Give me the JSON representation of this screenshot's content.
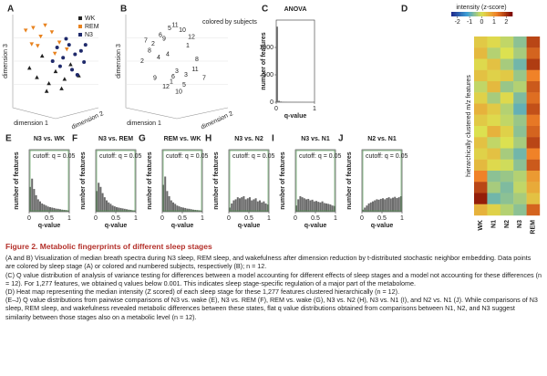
{
  "chart_data": [
    {
      "type": "scatter",
      "panel": "A",
      "xlabel": "dimension 1",
      "ylabel": "dimension 3",
      "zlabel": "dimension 2",
      "legend": "top-right",
      "xlim": [
        0,
        10
      ],
      "ylim": [
        0,
        10
      ],
      "series": [
        {
          "name": "WK",
          "color": "#222222",
          "marker": "triangle",
          "x": [
            1.5,
            2.5,
            3.2,
            4.1,
            5.0,
            6.2,
            7.0,
            3.8,
            5.8,
            8.1
          ],
          "y": [
            4.2,
            3.1,
            5.6,
            2.4,
            3.8,
            2.9,
            4.6,
            1.5,
            1.8,
            3.3
          ]
        },
        {
          "name": "REM",
          "color": "#e8821e",
          "marker": "triangle-down",
          "x": [
            1.0,
            2.0,
            3.0,
            4.5,
            5.5,
            2.6,
            3.6,
            6.5,
            1.8,
            4.9
          ],
          "y": [
            8.6,
            8.9,
            7.9,
            8.4,
            7.2,
            6.8,
            9.2,
            6.4,
            7.0,
            5.9
          ]
        },
        {
          "name": "N3",
          "color": "#1f2a6b",
          "marker": "circle",
          "x": [
            5.2,
            6.0,
            6.8,
            7.6,
            8.4,
            5.6,
            7.2,
            8.8,
            6.4,
            4.6,
            7.9,
            9.0
          ],
          "y": [
            6.6,
            5.4,
            6.9,
            5.8,
            6.2,
            4.4,
            4.0,
            4.9,
            7.6,
            5.0,
            3.4,
            6.9
          ]
        }
      ]
    },
    {
      "type": "scatter-labels",
      "panel": "B",
      "xlabel": "dimension 1",
      "ylabel": "dimension 3",
      "zlabel": "dimension 2",
      "annotation": "colored by subjects",
      "xlim": [
        0,
        10
      ],
      "ylim": [
        0,
        10
      ],
      "subject_colors": [
        "#1f2a6b",
        "#4e7fc0",
        "#e8821e",
        "#3aa6b9",
        "#222222",
        "#555555",
        "#e8a33e",
        "#c95f1a",
        "#333333",
        "#444444",
        "#d98a2b",
        "#777777"
      ],
      "x": [
        4.8,
        1.6,
        2.4,
        3.2,
        3.6,
        4.2,
        2.0,
        5.6,
        6.2,
        4.0,
        6.6,
        5.0,
        3.0,
        1.2,
        7.0,
        4.6,
        5.8,
        2.6,
        3.8,
        6.0,
        7.2,
        5.2,
        4.4,
        8.0
      ],
      "y": [
        9.2,
        7.4,
        7.0,
        8.0,
        7.6,
        8.8,
        6.2,
        8.6,
        6.8,
        5.8,
        7.8,
        3.8,
        5.4,
        5.0,
        4.0,
        3.2,
        2.2,
        3.0,
        2.0,
        3.4,
        5.2,
        1.4,
        2.6,
        3.0
      ],
      "subjects": [
        11,
        7,
        2,
        6,
        9,
        5,
        8,
        10,
        1,
        4,
        12,
        3,
        4,
        2,
        11,
        6,
        5,
        9,
        12,
        3,
        8,
        10,
        1,
        7
      ]
    },
    {
      "type": "histogram",
      "panel": "C",
      "title": "ANOVA",
      "xlabel": "q-value",
      "ylabel": "number of features",
      "xlim": [
        0,
        1
      ],
      "ylim": [
        0,
        1500
      ],
      "xticks": [
        0,
        1
      ],
      "yticks": [
        0,
        500,
        1000
      ],
      "bins": [
        0,
        0.05,
        0.1,
        0.15,
        0.2,
        0.25,
        0.3,
        0.35,
        0.4,
        0.45,
        0.5,
        0.55,
        0.6,
        0.65,
        0.7,
        0.75,
        0.8,
        0.85,
        0.9,
        0.95,
        1
      ],
      "values": [
        1380,
        25,
        12,
        8,
        6,
        5,
        4,
        4,
        3,
        3,
        3,
        2,
        2,
        2,
        2,
        1,
        1,
        1,
        1,
        1
      ]
    },
    {
      "type": "heatmap",
      "panel": "D",
      "colorbar_label": "intensity (z-score)",
      "ylabel": "hierarchically clustered m/z features",
      "clim": [
        -2.5,
        2.5
      ],
      "cticks": [
        -2,
        -1,
        0,
        1,
        2
      ],
      "categories": [
        "WK",
        "N1",
        "N2",
        "N3",
        "REM"
      ],
      "columns": [
        [
          0.3,
          0.5,
          0.1,
          0.4,
          -0.2,
          0.2,
          0.6,
          0.3,
          0.0,
          0.4,
          0.2,
          0.5,
          1.2,
          1.8,
          2.2,
          0.6
        ],
        [
          0.1,
          -0.3,
          0.4,
          0.2,
          0.5,
          -0.4,
          0.3,
          0.1,
          0.6,
          -0.2,
          0.4,
          0.1,
          -0.6,
          -0.4,
          -0.8,
          0.2
        ],
        [
          -0.2,
          0.0,
          -0.4,
          0.3,
          -0.5,
          0.1,
          -0.3,
          -0.2,
          0.2,
          0.0,
          -0.4,
          -0.1,
          -0.5,
          -0.7,
          -0.6,
          -0.3
        ],
        [
          -0.6,
          -0.4,
          -0.8,
          -0.5,
          -0.3,
          -0.7,
          -0.9,
          -0.5,
          -0.6,
          -0.4,
          -0.8,
          -0.6,
          -0.3,
          -0.2,
          -0.4,
          -0.6
        ],
        [
          1.8,
          1.5,
          1.9,
          1.2,
          1.6,
          1.4,
          1.7,
          1.3,
          1.5,
          1.8,
          1.2,
          1.6,
          0.9,
          0.7,
          0.4,
          1.5
        ]
      ]
    },
    {
      "type": "histogram",
      "panel": "E",
      "title": "N3 vs. WK",
      "annotation": "cutoff: q = 0.05",
      "xlabel": "q-value",
      "ylabel": "number of features",
      "xlim": [
        0,
        1
      ],
      "ylim": [
        0,
        300
      ],
      "xticks": [
        0,
        0.5,
        1
      ],
      "bins": [
        0,
        0.05,
        0.1,
        0.15,
        0.2,
        0.25,
        0.3,
        0.35,
        0.4,
        0.45,
        0.5,
        0.55,
        0.6,
        0.65,
        0.7,
        0.75,
        0.8,
        0.85,
        0.9,
        0.95,
        1
      ],
      "values": [
        120,
        160,
        110,
        80,
        60,
        50,
        40,
        35,
        30,
        25,
        22,
        20,
        18,
        15,
        14,
        12,
        10,
        9,
        8,
        6
      ]
    },
    {
      "type": "histogram",
      "panel": "F",
      "title": "N3 vs. REM",
      "annotation": "cutoff: q = 0.05",
      "xlabel": "q-value",
      "ylabel": "number of features",
      "xlim": [
        0,
        1
      ],
      "ylim": [
        0,
        300
      ],
      "xticks": [
        0,
        0.5,
        1
      ],
      "bins": [
        0,
        0.05,
        0.1,
        0.15,
        0.2,
        0.25,
        0.3,
        0.35,
        0.4,
        0.45,
        0.5,
        0.55,
        0.6,
        0.65,
        0.7,
        0.75,
        0.8,
        0.85,
        0.9,
        0.95,
        1
      ],
      "values": [
        100,
        140,
        120,
        90,
        70,
        55,
        45,
        38,
        30,
        26,
        22,
        20,
        18,
        16,
        14,
        12,
        10,
        9,
        7,
        6
      ]
    },
    {
      "type": "histogram",
      "panel": "G",
      "title": "REM vs. WK",
      "annotation": "cutoff: q = 0.05",
      "xlabel": "q-value",
      "ylabel": "number of features",
      "xlim": [
        0,
        1
      ],
      "ylim": [
        0,
        300
      ],
      "xticks": [
        0,
        0.5,
        1
      ],
      "bins": [
        0,
        0.05,
        0.1,
        0.15,
        0.2,
        0.25,
        0.3,
        0.35,
        0.4,
        0.45,
        0.5,
        0.55,
        0.6,
        0.65,
        0.7,
        0.75,
        0.8,
        0.85,
        0.9,
        0.95,
        1
      ],
      "values": [
        130,
        170,
        100,
        75,
        55,
        45,
        38,
        30,
        26,
        22,
        20,
        18,
        15,
        14,
        12,
        10,
        9,
        8,
        7,
        5
      ]
    },
    {
      "type": "histogram",
      "panel": "H",
      "title": "N3 vs. N2",
      "annotation": "cutoff: q = 0.05",
      "xlabel": "q-value",
      "ylabel": "number of features",
      "xlim": [
        0,
        1
      ],
      "ylim": [
        0,
        300
      ],
      "xticks": [
        0,
        0.5,
        1
      ],
      "bins": [
        0,
        0.05,
        0.1,
        0.15,
        0.2,
        0.25,
        0.3,
        0.35,
        0.4,
        0.45,
        0.5,
        0.55,
        0.6,
        0.65,
        0.7,
        0.75,
        0.8,
        0.85,
        0.9,
        0.95,
        1
      ],
      "values": [
        20,
        40,
        55,
        60,
        70,
        65,
        70,
        75,
        60,
        65,
        70,
        55,
        60,
        65,
        50,
        55,
        45,
        50,
        40,
        35
      ]
    },
    {
      "type": "histogram",
      "panel": "I",
      "title": "N3 vs. N1",
      "annotation": "cutoff: q = 0.05",
      "xlabel": "q-value",
      "ylabel": "number of features",
      "xlim": [
        0,
        1
      ],
      "ylim": [
        0,
        300
      ],
      "xticks": [
        0,
        0.5,
        1
      ],
      "bins": [
        0,
        0.05,
        0.1,
        0.15,
        0.2,
        0.25,
        0.3,
        0.35,
        0.4,
        0.45,
        0.5,
        0.55,
        0.6,
        0.65,
        0.7,
        0.75,
        0.8,
        0.85,
        0.9,
        0.95,
        1
      ],
      "values": [
        30,
        60,
        75,
        70,
        65,
        60,
        62,
        55,
        58,
        50,
        52,
        48,
        45,
        50,
        42,
        40,
        38,
        35,
        30,
        28
      ]
    },
    {
      "type": "histogram",
      "panel": "J",
      "title": "N2 vs. N1",
      "annotation": "cutoff: q = 0.05",
      "xlabel": "q-value",
      "ylabel": "number of features",
      "xlim": [
        0,
        1
      ],
      "ylim": [
        0,
        300
      ],
      "xticks": [
        0,
        0.5,
        1
      ],
      "bins": [
        0,
        0.05,
        0.1,
        0.15,
        0.2,
        0.25,
        0.3,
        0.35,
        0.4,
        0.45,
        0.5,
        0.55,
        0.6,
        0.65,
        0.7,
        0.75,
        0.8,
        0.85,
        0.9,
        0.95,
        1
      ],
      "values": [
        10,
        20,
        30,
        40,
        45,
        50,
        55,
        60,
        58,
        62,
        65,
        60,
        66,
        70,
        64,
        68,
        72,
        66,
        70,
        75
      ]
    }
  ],
  "caption": {
    "title": "Figure 2. Metabolic fingerprints of different sleep stages",
    "paragraphs": [
      "(A and B) Visualization of median breath spectra during N3 sleep, REM sleep, and wakefulness after dimension reduction by t-distributed stochastic neighbor embedding. Data points are colored by sleep stage (A) or colored and numbered subjects, respectively (B); n = 12.",
      "(C) Q value distribution of analysis of variance testing for differences between a model accounting for different effects of sleep stages and a model not accounting for these differences (n = 12). For 1,277 features, we obtained q values below 0.001. This indicates sleep stage-specific regulation of a major part of the metabolome.",
      "(D) Heat map representing the median intensity (Z scored) of each sleep stage for these 1,277 features clustered hierarchically (n = 12).",
      "(E–J) Q value distributions from pairwise comparisons of N3 vs. wake (E), N3 vs. REM (F), REM vs. wake (G), N3 vs. N2 (H), N3 vs. N1 (I), and N2 vs. N1 (J). While comparisons of N3 sleep, REM sleep, and wakefulness revealed metabolic differences between these states, flat q value distributions obtained from comparisons between N1, N2, and N3 suggest similarity between those stages also on a metabolic level (n = 12)."
    ]
  }
}
